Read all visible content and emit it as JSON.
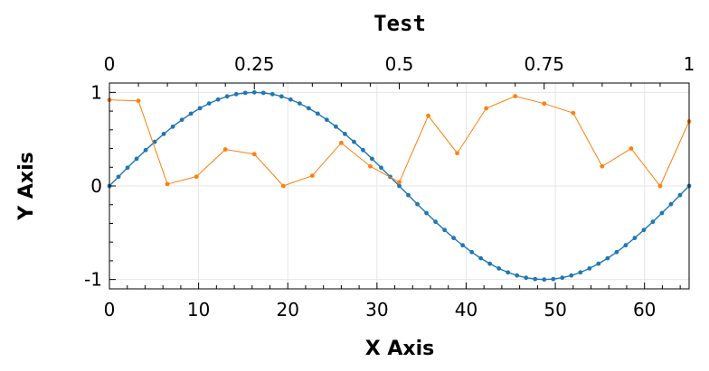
{
  "chart_data": {
    "type": "line",
    "title": "Test",
    "xlabel": "X Axis",
    "ylabel": "Y Axis",
    "xlim": [
      0,
      65
    ],
    "ylim": [
      -1.1,
      1.1
    ],
    "top_xlim": [
      0,
      1
    ],
    "x_ticks": [
      0,
      10,
      20,
      30,
      40,
      50,
      60
    ],
    "x_tick_labels": [
      "0",
      "10",
      "20",
      "30",
      "40",
      "50",
      "60"
    ],
    "top_ticks": [
      0,
      0.25,
      0.5,
      0.75,
      1
    ],
    "top_tick_labels": [
      "0",
      "0.25",
      "0.5",
      "0.75",
      "1"
    ],
    "y_ticks": [
      -1,
      0,
      1
    ],
    "y_tick_labels": [
      "-1",
      "0",
      "1"
    ],
    "grid": true,
    "series": [
      {
        "color": "#1f77b4",
        "x": [
          0,
          1.016,
          2.031,
          3.047,
          4.063,
          5.078,
          6.094,
          7.109,
          8.125,
          9.141,
          10.156,
          11.172,
          12.188,
          13.203,
          14.219,
          15.234,
          16.25,
          17.266,
          18.281,
          19.297,
          20.313,
          21.328,
          22.344,
          23.359,
          24.375,
          25.391,
          26.406,
          27.422,
          28.438,
          29.453,
          30.469,
          31.484,
          32.5,
          33.516,
          34.531,
          35.547,
          36.563,
          37.578,
          38.594,
          39.609,
          40.625,
          41.641,
          42.656,
          43.672,
          44.688,
          45.703,
          46.719,
          47.734,
          48.75,
          49.766,
          50.781,
          51.797,
          52.813,
          53.828,
          54.844,
          55.859,
          56.875,
          57.891,
          58.906,
          59.922,
          60.938,
          61.953,
          62.969,
          63.984,
          65
        ],
        "y": [
          0,
          0.098,
          0.195,
          0.29,
          0.383,
          0.471,
          0.556,
          0.634,
          0.707,
          0.773,
          0.831,
          0.882,
          0.924,
          0.957,
          0.981,
          0.995,
          1,
          0.995,
          0.981,
          0.957,
          0.924,
          0.882,
          0.831,
          0.773,
          0.707,
          0.634,
          0.556,
          0.471,
          0.383,
          0.29,
          0.195,
          0.098,
          0,
          -0.098,
          -0.195,
          -0.29,
          -0.383,
          -0.471,
          -0.556,
          -0.634,
          -0.707,
          -0.773,
          -0.831,
          -0.882,
          -0.924,
          -0.957,
          -0.981,
          -0.995,
          -1,
          -0.995,
          -0.981,
          -0.957,
          -0.924,
          -0.882,
          -0.831,
          -0.773,
          -0.707,
          -0.634,
          -0.556,
          -0.471,
          -0.383,
          -0.29,
          -0.195,
          -0.098,
          0
        ]
      },
      {
        "color": "#ff7f0e",
        "x": [
          0,
          3.25,
          6.5,
          9.75,
          13,
          16.25,
          19.5,
          22.75,
          26,
          29.25,
          32.5,
          35.75,
          39,
          42.25,
          45.5,
          48.75,
          52,
          55.25,
          58.5,
          61.75,
          65
        ],
        "y": [
          0.92,
          0.91,
          0.02,
          0.1,
          0.39,
          0.34,
          0,
          0.11,
          0.46,
          0.21,
          0.04,
          0.75,
          0.35,
          0.83,
          0.96,
          0.88,
          0.78,
          0.21,
          0.4,
          0,
          0.69
        ]
      }
    ]
  }
}
